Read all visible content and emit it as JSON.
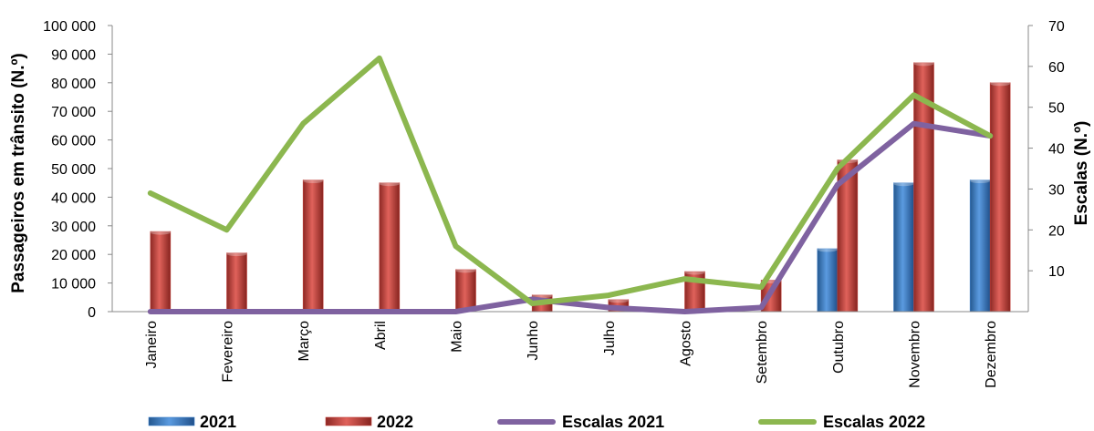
{
  "chart_data": {
    "type": "bar",
    "categories": [
      "Janeiro",
      "Fevereiro",
      "Março",
      "Abril",
      "Maio",
      "Junho",
      "Julho",
      "Agosto",
      "Setembro",
      "Outubro",
      "Novembro",
      "Dezembro"
    ],
    "series": [
      {
        "name": "2021",
        "type": "bar",
        "axis": "left",
        "color": "#3b7dc8",
        "values": [
          0,
          0,
          0,
          0,
          0,
          0,
          0,
          0,
          0,
          22000,
          45000,
          46000
        ]
      },
      {
        "name": "2022",
        "type": "bar",
        "axis": "left",
        "color": "#c0403a",
        "values": [
          28000,
          20500,
          46000,
          45000,
          14700,
          5800,
          4200,
          14000,
          11000,
          53000,
          87000,
          80000
        ]
      },
      {
        "name": "Escalas 2021",
        "type": "line",
        "axis": "right",
        "color": "#7f62a0",
        "values": [
          0,
          0,
          0,
          0,
          0,
          3,
          1,
          0,
          1,
          31,
          46,
          43
        ]
      },
      {
        "name": "Escalas 2022",
        "type": "line",
        "axis": "right",
        "color": "#8cb74f",
        "values": [
          29,
          20,
          46,
          62,
          16,
          2,
          4,
          8,
          6,
          35,
          53,
          43
        ]
      }
    ],
    "ylabel": "Passageiros em trânsito (N.º)",
    "y2label": "Escalas (N.º)",
    "ylim": [
      0,
      100000
    ],
    "y2lim": [
      0,
      70
    ],
    "yticks": [
      "0",
      "10 000",
      "20 000",
      "30 000",
      "40 000",
      "50 000",
      "60 000",
      "70 000",
      "80 000",
      "90 000",
      "100 000"
    ],
    "y2ticks": [
      "10",
      "20",
      "30",
      "40",
      "50",
      "60",
      "70"
    ],
    "y2tick_values": [
      10,
      20,
      30,
      40,
      50,
      60,
      70
    ],
    "grid": false,
    "legend_position": "bottom"
  }
}
